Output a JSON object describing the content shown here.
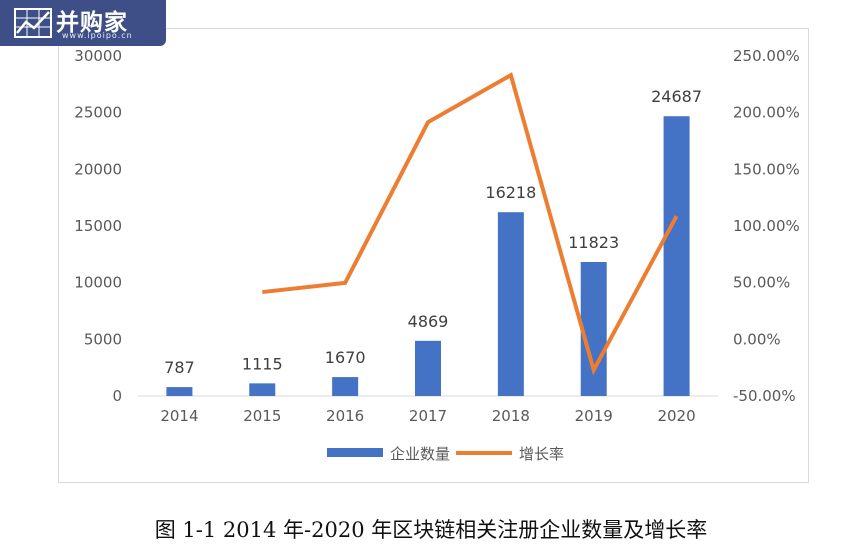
{
  "watermark": {
    "title": "并购家",
    "url": "www.ipoipo.cn"
  },
  "caption": "图 1-1 2014 年-2020 年区块链相关注册企业数量及增长率",
  "chart_data": {
    "type": "bar",
    "categories": [
      "2014",
      "2015",
      "2016",
      "2017",
      "2018",
      "2019",
      "2020"
    ],
    "series": [
      {
        "name": "企业数量",
        "type": "bar",
        "axis": "left",
        "values": [
          787,
          1115,
          1670,
          4869,
          16218,
          11823,
          24687
        ]
      },
      {
        "name": "增长率",
        "type": "line",
        "axis": "right",
        "values": [
          null,
          41.7,
          49.8,
          191.6,
          233.1,
          -27.1,
          108.8
        ]
      }
    ],
    "data_labels": [
      "787",
      "1115",
      "1670",
      "4869",
      "16218",
      "11823",
      "24687"
    ],
    "y_left": {
      "min": 0,
      "max": 30000,
      "ticks": [
        "0",
        "5000",
        "10000",
        "15000",
        "20000",
        "25000",
        "30000"
      ]
    },
    "y_right": {
      "min": -50,
      "max": 250,
      "ticks": [
        "-50.00%",
        "0.00%",
        "50.00%",
        "100.00%",
        "150.00%",
        "200.00%",
        "250.00%"
      ]
    },
    "legend_position": "bottom",
    "grid": false,
    "colors": {
      "bar": "#4472c4",
      "line": "#ed7d31"
    }
  }
}
